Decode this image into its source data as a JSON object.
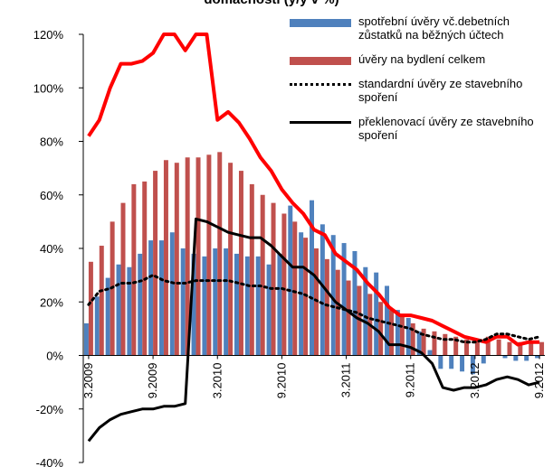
{
  "chart_data": {
    "type": "combo",
    "title": "domácností (y/y v %)",
    "categories": [
      "3.2009",
      null,
      null,
      null,
      null,
      null,
      "9.2009",
      null,
      null,
      null,
      null,
      null,
      "3.2010",
      null,
      null,
      null,
      null,
      null,
      "9.2010",
      null,
      null,
      null,
      null,
      null,
      "3.2011",
      null,
      null,
      null,
      null,
      null,
      "9.2011",
      null,
      null,
      null,
      null,
      null,
      "3.2012",
      null,
      null,
      null,
      null,
      null,
      "9.2012"
    ],
    "series": [
      {
        "name": "spotřební úvěry vč.debetních zůstatků na běžných účtech",
        "kind": "bar",
        "color": "#4f81bd",
        "values": [
          12,
          22,
          29,
          34,
          33,
          38,
          43,
          43,
          46,
          40,
          38,
          37,
          40,
          40,
          38,
          37,
          37,
          34,
          38,
          56,
          46,
          58,
          49,
          45,
          42,
          39,
          33,
          31,
          26,
          17,
          14,
          9,
          2,
          -5,
          -5,
          -6,
          -7,
          -3,
          0,
          -1,
          -2,
          -2,
          -1
        ]
      },
      {
        "name": "úvěry na bydlení celkem",
        "kind": "bar",
        "color": "#c0504d",
        "values": [
          35,
          41,
          50,
          57,
          64,
          65,
          69,
          73,
          72,
          74,
          74,
          75,
          76,
          72,
          69,
          64,
          60,
          57,
          53,
          50,
          44,
          40,
          36,
          32,
          28,
          26,
          23,
          20,
          17,
          15,
          12,
          10,
          9,
          8,
          7,
          6,
          6,
          7,
          6,
          5,
          5,
          5,
          5
        ]
      },
      {
        "kind": "line",
        "color": "#ff0000",
        "width": 4,
        "values": [
          82,
          88,
          100,
          109,
          109,
          110,
          113,
          120,
          120,
          114,
          120,
          120,
          88,
          91,
          87,
          81,
          74,
          69,
          62,
          57,
          53,
          47,
          45,
          38,
          35,
          32,
          27,
          23,
          18,
          15,
          15,
          14,
          13,
          11,
          9,
          7,
          6,
          5,
          7,
          7,
          4,
          5,
          5
        ]
      },
      {
        "name": "standardní úvěry ze stavebního spoření",
        "kind": "line",
        "color": "#000000",
        "width": 3,
        "dash": "dotted",
        "values": [
          19,
          24,
          25,
          27,
          27,
          28,
          30,
          28,
          27,
          27,
          28,
          28,
          28,
          28,
          27,
          26,
          26,
          25,
          25,
          24,
          23,
          21,
          19,
          18,
          17,
          16,
          14,
          13,
          12,
          11,
          10,
          8,
          7,
          6,
          6,
          5,
          5,
          6,
          8,
          8,
          7,
          6,
          7
        ]
      },
      {
        "name": "překlenovací úvěry ze stavebního spoření",
        "kind": "line",
        "color": "#000000",
        "width": 3,
        "values": [
          -32,
          -27,
          -24,
          -22,
          -21,
          -20,
          -20,
          -19,
          -19,
          -18,
          51,
          50,
          48,
          46,
          45,
          44,
          44,
          41,
          37,
          33,
          33,
          30,
          25,
          20,
          17,
          14,
          12,
          9,
          4,
          4,
          3,
          1,
          -3,
          -12,
          -13,
          -12,
          -12,
          -11,
          -9,
          -8,
          -9,
          -11,
          -10
        ]
      }
    ],
    "ylim": [
      -40,
      120
    ],
    "yticks": [
      {
        "value": -40,
        "label": "-40%"
      },
      {
        "value": -20,
        "label": "-20%"
      },
      {
        "value": 0,
        "label": "0%"
      },
      {
        "value": 20,
        "label": "20%"
      },
      {
        "value": 40,
        "label": "40%"
      },
      {
        "value": 60,
        "label": "60%"
      },
      {
        "value": 80,
        "label": "80%"
      },
      {
        "value": 100,
        "label": "100%"
      },
      {
        "value": 120,
        "label": "120%"
      }
    ],
    "grid": false
  }
}
